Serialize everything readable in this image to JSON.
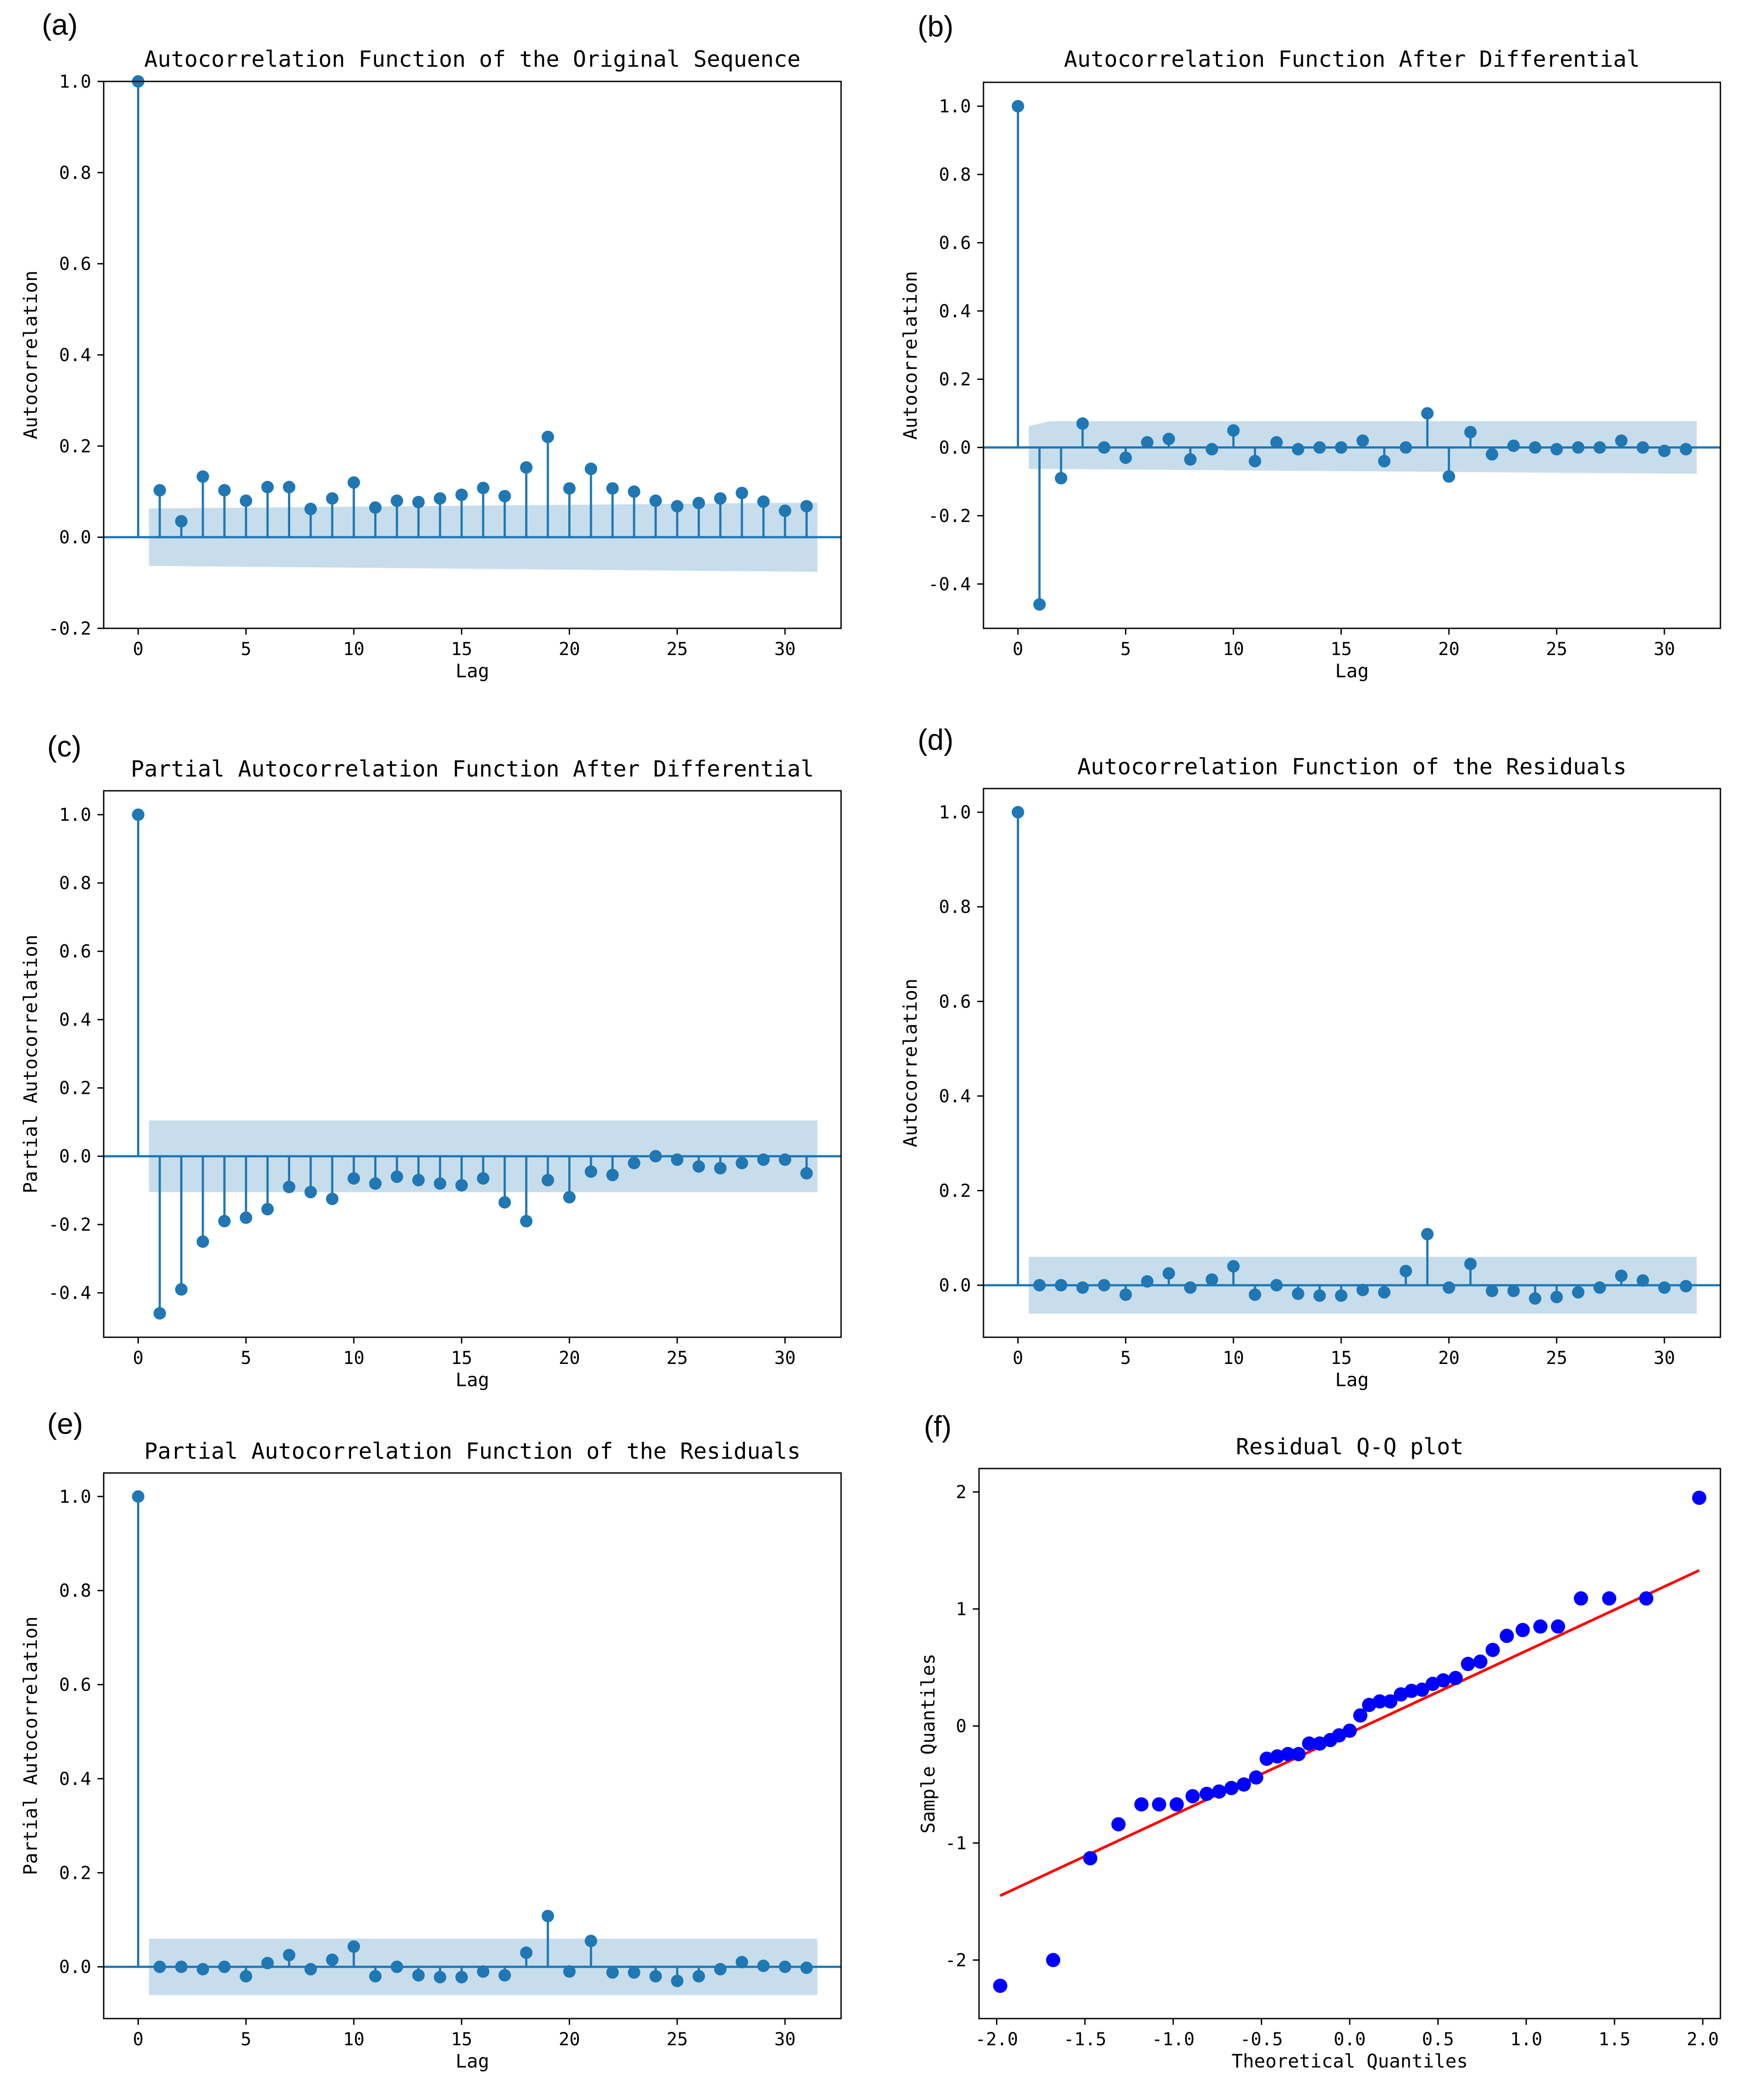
{
  "colors": {
    "stem": "#1f77b4",
    "band": "#1f77b4",
    "qq_point": "#0000ff",
    "qq_line": "#ff0000",
    "axis": "#000000"
  },
  "chart_data": [
    {
      "id": "a",
      "panel_label": "(a)",
      "type": "stem",
      "title": "Autocorrelation Function of the Original Sequence",
      "xlabel": "Lag",
      "ylabel": "Autocorrelation",
      "xlim": [
        -1.6,
        32.6
      ],
      "ylim": [
        -0.2,
        1.0
      ],
      "xticks": [
        0,
        5,
        10,
        15,
        20,
        25,
        30
      ],
      "xtick_labels": [
        "0",
        "5",
        "10",
        "15",
        "20",
        "25",
        "30"
      ],
      "yticks": [
        -0.2,
        0.0,
        0.2,
        0.4,
        0.6,
        0.8,
        1.0
      ],
      "ytick_labels": [
        "-0.2",
        "0.0",
        "0.2",
        "0.4",
        "0.6",
        "0.8",
        "1.0"
      ],
      "lags": [
        0,
        1,
        2,
        3,
        4,
        5,
        6,
        7,
        8,
        9,
        10,
        11,
        12,
        13,
        14,
        15,
        16,
        17,
        18,
        19,
        20,
        21,
        22,
        23,
        24,
        25,
        26,
        27,
        28,
        29,
        30,
        31
      ],
      "values": [
        1.0,
        0.103,
        0.035,
        0.133,
        0.103,
        0.08,
        0.11,
        0.11,
        0.062,
        0.085,
        0.12,
        0.065,
        0.08,
        0.077,
        0.085,
        0.093,
        0.108,
        0.09,
        0.153,
        0.22,
        0.107,
        0.15,
        0.107,
        0.1,
        0.08,
        0.068,
        0.075,
        0.085,
        0.097,
        0.078,
        0.058,
        0.068
      ],
      "band_lags": [
        0.5,
        31.5
      ],
      "band_upper": [
        0.063,
        0.076
      ],
      "band_lower": [
        -0.063,
        -0.076
      ]
    },
    {
      "id": "b",
      "panel_label": "(b)",
      "type": "stem",
      "title": "Autocorrelation Function After Differential",
      "xlabel": "Lag",
      "ylabel": "Autocorrelation",
      "xlim": [
        -1.6,
        32.6
      ],
      "ylim": [
        -0.53,
        1.07
      ],
      "xticks": [
        0,
        5,
        10,
        15,
        20,
        25,
        30
      ],
      "xtick_labels": [
        "0",
        "5",
        "10",
        "15",
        "20",
        "25",
        "30"
      ],
      "yticks": [
        -0.4,
        -0.2,
        0.0,
        0.2,
        0.4,
        0.6,
        0.8,
        1.0
      ],
      "ytick_labels": [
        "-0.4",
        "-0.2",
        "0.0",
        "0.2",
        "0.4",
        "0.6",
        "0.8",
        "1.0"
      ],
      "lags": [
        0,
        1,
        2,
        3,
        4,
        5,
        6,
        7,
        8,
        9,
        10,
        11,
        12,
        13,
        14,
        15,
        16,
        17,
        18,
        19,
        20,
        21,
        22,
        23,
        24,
        25,
        26,
        27,
        28,
        29,
        30,
        31
      ],
      "values": [
        1.0,
        -0.46,
        -0.09,
        0.07,
        0.0,
        -0.03,
        0.015,
        0.025,
        -0.035,
        -0.005,
        0.05,
        -0.04,
        0.015,
        -0.005,
        0.0,
        0.0,
        0.02,
        -0.04,
        0.0,
        0.1,
        -0.085,
        0.045,
        -0.02,
        0.005,
        0.0,
        -0.005,
        0.0,
        0.0,
        0.02,
        0.0,
        -0.01,
        -0.005
      ],
      "band_lags": [
        0.5,
        1.5,
        31.5
      ],
      "band_upper": [
        0.063,
        0.077,
        0.077
      ],
      "band_lower": [
        -0.063,
        -0.063,
        -0.077
      ]
    },
    {
      "id": "c",
      "panel_label": "(c)",
      "type": "stem",
      "title": "Partial Autocorrelation Function After Differential",
      "xlabel": "Lag",
      "ylabel": "Partial Autocorrelation",
      "xlim": [
        -1.6,
        32.6
      ],
      "ylim": [
        -0.53,
        1.07
      ],
      "xticks": [
        0,
        5,
        10,
        15,
        20,
        25,
        30
      ],
      "xtick_labels": [
        "0",
        "5",
        "10",
        "15",
        "20",
        "25",
        "30"
      ],
      "yticks": [
        -0.4,
        -0.2,
        0.0,
        0.2,
        0.4,
        0.6,
        0.8,
        1.0
      ],
      "ytick_labels": [
        "-0.4",
        "-0.2",
        "0.0",
        "0.2",
        "0.4",
        "0.6",
        "0.8",
        "1.0"
      ],
      "lags": [
        0,
        1,
        2,
        3,
        4,
        5,
        6,
        7,
        8,
        9,
        10,
        11,
        12,
        13,
        14,
        15,
        16,
        17,
        18,
        19,
        20,
        21,
        22,
        23,
        24,
        25,
        26,
        27,
        28,
        29,
        30,
        31
      ],
      "values": [
        1.0,
        -0.46,
        -0.39,
        -0.25,
        -0.19,
        -0.18,
        -0.155,
        -0.09,
        -0.105,
        -0.125,
        -0.065,
        -0.08,
        -0.06,
        -0.07,
        -0.08,
        -0.085,
        -0.065,
        -0.135,
        -0.19,
        -0.07,
        -0.12,
        -0.045,
        -0.055,
        -0.02,
        0.0,
        -0.01,
        -0.03,
        -0.035,
        -0.02,
        -0.01,
        -0.01,
        -0.05
      ],
      "band_lags": [
        0.5,
        31.5
      ],
      "band_upper": [
        0.105,
        0.105
      ],
      "band_lower": [
        -0.105,
        -0.105
      ]
    },
    {
      "id": "d",
      "panel_label": "(d)",
      "type": "stem",
      "title": "Autocorrelation Function of the Residuals",
      "xlabel": "Lag",
      "ylabel": "Autocorrelation",
      "xlim": [
        -1.6,
        32.6
      ],
      "ylim": [
        -0.11,
        1.05
      ],
      "xticks": [
        0,
        5,
        10,
        15,
        20,
        25,
        30
      ],
      "xtick_labels": [
        "0",
        "5",
        "10",
        "15",
        "20",
        "25",
        "30"
      ],
      "yticks": [
        0.0,
        0.2,
        0.4,
        0.6,
        0.8,
        1.0
      ],
      "ytick_labels": [
        "0.0",
        "0.2",
        "0.4",
        "0.6",
        "0.8",
        "1.0"
      ],
      "lags": [
        0,
        1,
        2,
        3,
        4,
        5,
        6,
        7,
        8,
        9,
        10,
        11,
        12,
        13,
        14,
        15,
        16,
        17,
        18,
        19,
        20,
        21,
        22,
        23,
        24,
        25,
        26,
        27,
        28,
        29,
        30,
        31
      ],
      "values": [
        1.0,
        0.0,
        0.0,
        -0.005,
        0.0,
        -0.02,
        0.008,
        0.025,
        -0.005,
        0.012,
        0.04,
        -0.02,
        0.0,
        -0.018,
        -0.022,
        -0.022,
        -0.01,
        -0.015,
        0.03,
        0.108,
        -0.005,
        0.045,
        -0.012,
        -0.012,
        -0.028,
        -0.025,
        -0.015,
        -0.005,
        0.02,
        0.01,
        -0.005,
        -0.002
      ],
      "band_lags": [
        0.5,
        31.5
      ],
      "band_upper": [
        0.06,
        0.06
      ],
      "band_lower": [
        -0.06,
        -0.06
      ]
    },
    {
      "id": "e",
      "panel_label": "(e)",
      "type": "stem",
      "title": "Partial Autocorrelation Function of the Residuals",
      "xlabel": "Lag",
      "ylabel": "Partial Autocorrelation",
      "xlim": [
        -1.6,
        32.6
      ],
      "ylim": [
        -0.11,
        1.05
      ],
      "xticks": [
        0,
        5,
        10,
        15,
        20,
        25,
        30
      ],
      "xtick_labels": [
        "0",
        "5",
        "10",
        "15",
        "20",
        "25",
        "30"
      ],
      "yticks": [
        0.0,
        0.2,
        0.4,
        0.6,
        0.8,
        1.0
      ],
      "ytick_labels": [
        "0.0",
        "0.2",
        "0.4",
        "0.6",
        "0.8",
        "1.0"
      ],
      "lags": [
        0,
        1,
        2,
        3,
        4,
        5,
        6,
        7,
        8,
        9,
        10,
        11,
        12,
        13,
        14,
        15,
        16,
        17,
        18,
        19,
        20,
        21,
        22,
        23,
        24,
        25,
        26,
        27,
        28,
        29,
        30,
        31
      ],
      "values": [
        1.0,
        0.0,
        0.0,
        -0.005,
        0.0,
        -0.02,
        0.008,
        0.025,
        -0.005,
        0.015,
        0.043,
        -0.02,
        0.0,
        -0.018,
        -0.022,
        -0.022,
        -0.01,
        -0.018,
        0.03,
        0.108,
        -0.01,
        0.055,
        -0.012,
        -0.012,
        -0.02,
        -0.03,
        -0.02,
        -0.005,
        0.01,
        0.002,
        0.0,
        -0.002
      ],
      "band_lags": [
        0.5,
        31.5
      ],
      "band_upper": [
        0.06,
        0.06
      ],
      "band_lower": [
        -0.06,
        -0.06
      ]
    },
    {
      "id": "f",
      "panel_label": "(f)",
      "type": "scatter",
      "title": "Residual Q-Q plot",
      "xlabel": "Theoretical Quantiles",
      "ylabel": "Sample Quantiles",
      "xlim": [
        -2.1,
        2.1
      ],
      "ylim": [
        -2.5,
        2.2
      ],
      "xticks": [
        -2.0,
        -1.5,
        -1.0,
        -0.5,
        0.0,
        0.5,
        1.0,
        1.5,
        2.0
      ],
      "xtick_labels": [
        "-2.0",
        "-1.5",
        "-1.0",
        "-0.5",
        "0.0",
        "0.5",
        "1.0",
        "1.5",
        "2.0"
      ],
      "yticks": [
        -2,
        -1,
        0,
        1,
        2
      ],
      "ytick_labels": [
        "-2",
        "-1",
        "0",
        "1",
        "2"
      ],
      "x": [
        -1.98,
        -1.68,
        -1.47,
        -1.31,
        -1.18,
        -1.08,
        -0.98,
        -0.89,
        -0.81,
        -0.74,
        -0.67,
        -0.6,
        -0.53,
        -0.47,
        -0.41,
        -0.35,
        -0.29,
        -0.23,
        -0.17,
        -0.11,
        -0.06,
        0.0,
        0.06,
        0.11,
        0.17,
        0.23,
        0.29,
        0.35,
        0.41,
        0.47,
        0.53,
        0.6,
        0.67,
        0.74,
        0.81,
        0.89,
        0.98,
        1.08,
        1.18,
        1.31,
        1.47,
        1.68,
        1.98
      ],
      "y": [
        -2.22,
        -2.0,
        -1.13,
        -0.84,
        -0.67,
        -0.67,
        -0.67,
        -0.6,
        -0.58,
        -0.56,
        -0.53,
        -0.5,
        -0.44,
        -0.28,
        -0.26,
        -0.24,
        -0.24,
        -0.15,
        -0.15,
        -0.12,
        -0.08,
        -0.04,
        0.09,
        0.18,
        0.21,
        0.21,
        0.27,
        0.3,
        0.31,
        0.36,
        0.39,
        0.41,
        0.53,
        0.55,
        0.65,
        0.77,
        0.82,
        0.85,
        0.85,
        1.09,
        1.09,
        1.09,
        1.95
      ],
      "line_x": [
        -1.98,
        1.98
      ],
      "line_y": [
        -1.45,
        1.33
      ]
    }
  ]
}
